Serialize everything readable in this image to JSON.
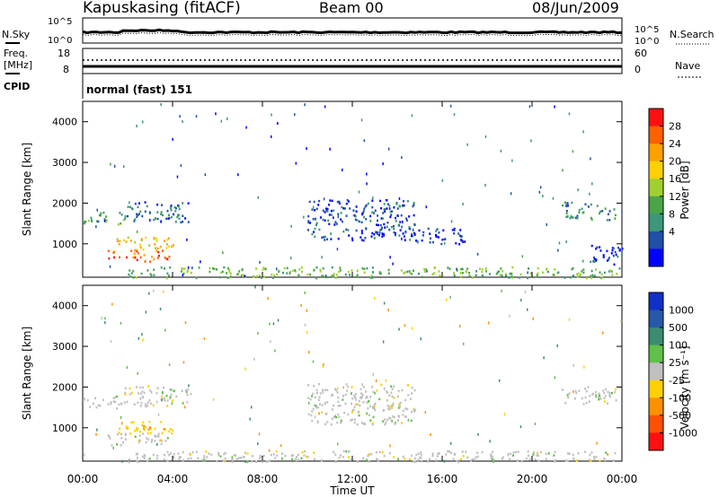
{
  "header": {
    "station": "Kapuskasing (fitACF)",
    "beam": "Beam 00",
    "date": "08/Jun/2009"
  },
  "summary": {
    "nsky_label": "N.Sky",
    "nsearch_label": "N.Search",
    "noise_ticks": [
      "10^5",
      "10^0"
    ],
    "freq_label": "Freq.",
    "freq_unit": "[MHz]",
    "freq_ticks": [
      "18",
      "8"
    ],
    "nave_label": "Nave",
    "nave_ticks": [
      "60",
      "0"
    ],
    "cpid_label": "CPID",
    "cpid_value": "normal (fast) 151"
  },
  "chart_data": [
    {
      "type": "heatmap",
      "name": "power",
      "ylabel": "Slant Range [km]",
      "ylim": [
        180,
        4500
      ],
      "yticks": [
        1000,
        2000,
        3000,
        4000
      ],
      "xlim": [
        0,
        24
      ],
      "colorbar_label": "Power [dB]",
      "colorbar_ticks": [
        "4",
        "8",
        "12",
        "16",
        "20",
        "24",
        "28"
      ],
      "colorbar_colors": [
        "#0000ff",
        "#2050a8",
        "#3c9878",
        "#4aa548",
        "#a0d030",
        "#ffd000",
        "#ffa000",
        "#ff6000",
        "#ff1010"
      ],
      "echo_regions": [
        {
          "t": [
            0.0,
            1.8
          ],
          "r": [
            1500,
            1800
          ],
          "value": 12
        },
        {
          "t": [
            1.8,
            4.8
          ],
          "r": [
            1550,
            2050
          ],
          "value": 8
        },
        {
          "t": [
            1.0,
            4.0
          ],
          "r": [
            580,
            880
          ],
          "value": 26
        },
        {
          "t": [
            1.5,
            4.0
          ],
          "r": [
            880,
            1180
          ],
          "value": 20
        },
        {
          "t": [
            10.0,
            14.8
          ],
          "r": [
            1100,
            2100
          ],
          "value": 6
        },
        {
          "t": [
            14.8,
            17.0
          ],
          "r": [
            1000,
            1400
          ],
          "value": 5
        },
        {
          "t": [
            21.3,
            23.8
          ],
          "r": [
            1600,
            2050
          ],
          "value": 10
        },
        {
          "t": [
            22.5,
            24.0
          ],
          "r": [
            500,
            1000
          ],
          "value": 5
        },
        {
          "t": [
            2.0,
            24.0
          ],
          "r": [
            180,
            450
          ],
          "value": 14
        }
      ]
    },
    {
      "type": "heatmap",
      "name": "velocity",
      "ylabel": "Slant Range [km]",
      "ylim": [
        180,
        4500
      ],
      "yticks": [
        1000,
        2000,
        3000,
        4000
      ],
      "xlim": [
        0,
        24
      ],
      "xlabel": "Time UT",
      "xticks": [
        "00:00",
        "04:00",
        "08:00",
        "12:00",
        "16:00",
        "20:00",
        "00:00"
      ],
      "colorbar_label": "Velocity [m s⁻¹]",
      "colorbar_ticks": [
        "1000",
        "500",
        "100",
        "25",
        "-25",
        "-100",
        "-500",
        "-1000"
      ],
      "colorbar_colors": [
        "#1030c8",
        "#2858a8",
        "#3c8c70",
        "#60c048",
        "#c0c0c0",
        "#ffd000",
        "#ff9000",
        "#ff5000",
        "#ff1010"
      ],
      "echo_regions": [
        {
          "t": [
            0.0,
            1.8
          ],
          "r": [
            1500,
            1800
          ],
          "value": 0
        },
        {
          "t": [
            1.8,
            4.8
          ],
          "r": [
            1550,
            2050
          ],
          "value": 0
        },
        {
          "t": [
            1.0,
            4.0
          ],
          "r": [
            580,
            880
          ],
          "value": 0
        },
        {
          "t": [
            1.5,
            4.0
          ],
          "r": [
            880,
            1180
          ],
          "value": -80
        },
        {
          "t": [
            10.0,
            14.8
          ],
          "r": [
            1100,
            2100
          ],
          "value": 0
        },
        {
          "t": [
            21.3,
            23.8
          ],
          "r": [
            1600,
            2050
          ],
          "value": 0
        },
        {
          "t": [
            2.0,
            24.0
          ],
          "r": [
            180,
            450
          ],
          "value": 0
        }
      ]
    }
  ]
}
